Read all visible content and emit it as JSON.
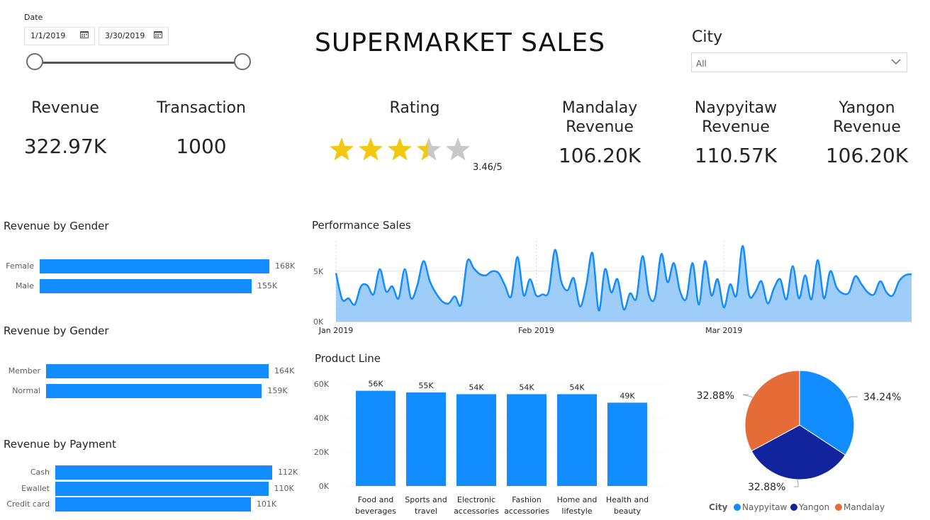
{
  "header": {
    "title": "SUPERMARKET SALES"
  },
  "date_slicer": {
    "caption": "Date",
    "start": "1/1/2019",
    "end": "3/30/2019",
    "calendar_icon": "calendar-icon"
  },
  "city_slicer": {
    "label": "City",
    "selected": "All",
    "icon": "chevron-down-icon"
  },
  "kpis": {
    "revenue": {
      "label": "Revenue",
      "value": "322.97K"
    },
    "transaction": {
      "label": "Transaction",
      "value": "1000"
    },
    "rating": {
      "label": "Rating",
      "value_text": "3.46/5",
      "stars": 3.46,
      "max": 5
    },
    "mandalay": {
      "label_1": "Mandalay",
      "label_2": "Revenue",
      "value": "106.20K"
    },
    "naypyitaw": {
      "label_1": "Naypyitaw",
      "label_2": "Revenue",
      "value": "110.57K"
    },
    "yangon": {
      "label_1": "Yangon",
      "label_2": "Revenue",
      "value": "106.20K"
    }
  },
  "colors": {
    "bar": "#118dff",
    "area_fill": "#9fcdfa",
    "star_on": "#f2c811",
    "star_off": "#c8c8c8",
    "pie_naypyitaw": "#118dff",
    "pie_yangon": "#12239e",
    "pie_mandalay": "#e66c37"
  },
  "chart_data": [
    {
      "id": "gender",
      "type": "bar",
      "orientation": "horizontal",
      "title": "Revenue by Gender",
      "categories": [
        "Female",
        "Male"
      ],
      "values": [
        168,
        155
      ],
      "value_labels": [
        "168K",
        "155K"
      ],
      "unit": "K"
    },
    {
      "id": "customer",
      "type": "bar",
      "orientation": "horizontal",
      "title": "Revenue by Gender",
      "categories": [
        "Member",
        "Normal"
      ],
      "values": [
        164,
        159
      ],
      "value_labels": [
        "164K",
        "159K"
      ],
      "unit": "K"
    },
    {
      "id": "payment",
      "type": "bar",
      "orientation": "horizontal",
      "title": "Revenue by Payment",
      "categories": [
        "Cash",
        "Ewallet",
        "Credit card"
      ],
      "values": [
        112,
        110,
        101
      ],
      "value_labels": [
        "112K",
        "110K",
        "101K"
      ],
      "unit": "K"
    },
    {
      "id": "performance",
      "type": "area",
      "title": "Performance Sales",
      "x_ticks": [
        "Jan 2019",
        "Feb 2019",
        "Mar 2019"
      ],
      "y_ticks": [
        "0K",
        "5K"
      ],
      "ylim": [
        0,
        8000
      ],
      "values": [
        4800,
        2200,
        2300,
        1700,
        3500,
        3600,
        2700,
        5200,
        3000,
        3500,
        2300,
        5200,
        2300,
        3600,
        6000,
        4000,
        2800,
        2000,
        1800,
        2500,
        1700,
        6000,
        5300,
        4700,
        4600,
        5000,
        4800,
        3600,
        2500,
        6400,
        2600,
        4200,
        2600,
        2700,
        3000,
        7100,
        4000,
        3100,
        4300,
        1500,
        3600,
        6800,
        1100,
        5200,
        2900,
        4200,
        1200,
        2800,
        2300,
        6500,
        2700,
        2400,
        6700,
        3900,
        5800,
        3000,
        2300,
        5800,
        1700,
        6000,
        2600,
        4200,
        1400,
        3700,
        2600,
        7500,
        2700,
        2900,
        4000,
        1800,
        3300,
        4200,
        2200,
        5500,
        2300,
        4600,
        2200,
        6100,
        2300,
        5000,
        3400,
        2800,
        2900,
        4500,
        3700,
        2900,
        2700,
        4000,
        2900,
        2600,
        4000,
        4600,
        4700
      ],
      "grid": true
    },
    {
      "id": "product_line",
      "type": "bar",
      "title": "Product Line",
      "categories": [
        [
          "Food and",
          "beverages"
        ],
        [
          "Sports and",
          "travel"
        ],
        [
          "Electronic",
          "accessories"
        ],
        [
          "Fashion",
          "accessories"
        ],
        [
          "Home and",
          "lifestyle"
        ],
        [
          "Health and",
          "beauty"
        ]
      ],
      "values": [
        56,
        55,
        54,
        54,
        54,
        49
      ],
      "value_labels": [
        "56K",
        "55K",
        "54K",
        "54K",
        "54K",
        "49K"
      ],
      "y_ticks": [
        "0K",
        "20K",
        "40K",
        "60K"
      ],
      "ylim": [
        0,
        60
      ]
    },
    {
      "id": "city_pie",
      "type": "pie",
      "series": [
        {
          "name": "Naypyitaw",
          "value": 34.24,
          "label": "34.24%"
        },
        {
          "name": "Yangon",
          "value": 32.88,
          "label": "32.88%"
        },
        {
          "name": "Mandalay",
          "value": 32.88,
          "label": "32.88%"
        }
      ],
      "legend_title": "City",
      "legend_position": "bottom"
    }
  ]
}
